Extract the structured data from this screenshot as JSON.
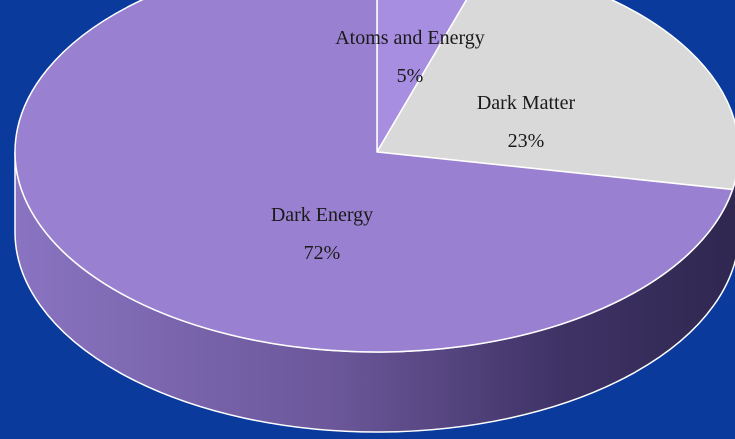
{
  "chart_data": {
    "type": "pie",
    "style": "3d",
    "title": "",
    "slices": [
      {
        "label": "Atoms and Energy",
        "percent_label": "5%",
        "value": 5,
        "color": "#a78ee0"
      },
      {
        "label": "Dark Matter",
        "percent_label": "23%",
        "value": 23,
        "color": "#d9d9d9"
      },
      {
        "label": "Dark Energy",
        "percent_label": "72%",
        "value": 72,
        "color": "#9a80d0"
      }
    ],
    "legend": "none"
  },
  "colors": {
    "background": "#0a3a9c",
    "slice_edge": "#ffffff",
    "side_dark": "#3a2f5c",
    "side_light": "#8a74c2"
  }
}
